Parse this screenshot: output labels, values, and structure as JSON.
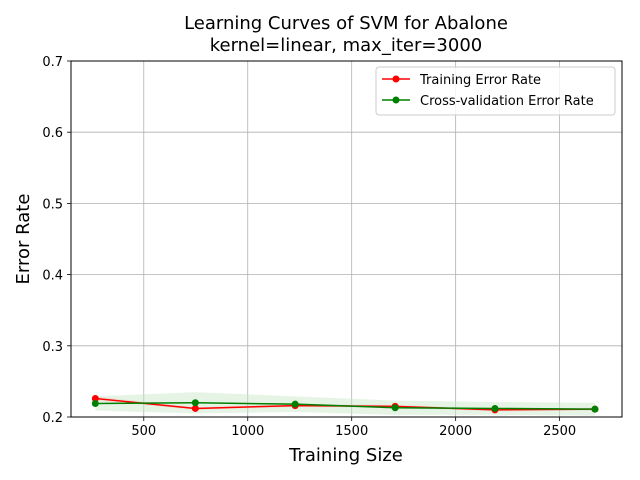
{
  "chart_data": {
    "type": "line",
    "title_line1": "Learning Curves of SVM for Abalone",
    "title_line2": "kernel=linear, max_iter=3000",
    "xlabel": "Training Size",
    "ylabel": "Error Rate",
    "xlim": [
      150,
      2800
    ],
    "ylim": [
      0.2,
      0.7
    ],
    "xticks": [
      500,
      1000,
      1500,
      2000,
      2500
    ],
    "yticks": [
      0.2,
      0.3,
      0.4,
      0.5,
      0.6,
      0.7
    ],
    "grid": true,
    "legend_position": "top-right",
    "x": [
      267,
      748,
      1228,
      1709,
      2189,
      2670
    ],
    "series": [
      {
        "name": "Training Error Rate",
        "color": "#ff0000",
        "values": [
          0.226,
          0.212,
          0.216,
          0.215,
          0.21,
          0.211
        ],
        "band_lower": [
          0.223,
          0.21,
          0.214,
          0.213,
          0.208,
          0.209
        ],
        "band_upper": [
          0.229,
          0.214,
          0.218,
          0.217,
          0.212,
          0.213
        ]
      },
      {
        "name": "Cross-validation Error Rate",
        "color": "#008000",
        "band_color": "#c8e6c8",
        "values": [
          0.219,
          0.22,
          0.218,
          0.213,
          0.212,
          0.211
        ],
        "band_lower": [
          0.209,
          0.205,
          0.207,
          0.203,
          0.203,
          0.202
        ],
        "band_upper": [
          0.229,
          0.235,
          0.229,
          0.223,
          0.221,
          0.22
        ]
      }
    ]
  }
}
